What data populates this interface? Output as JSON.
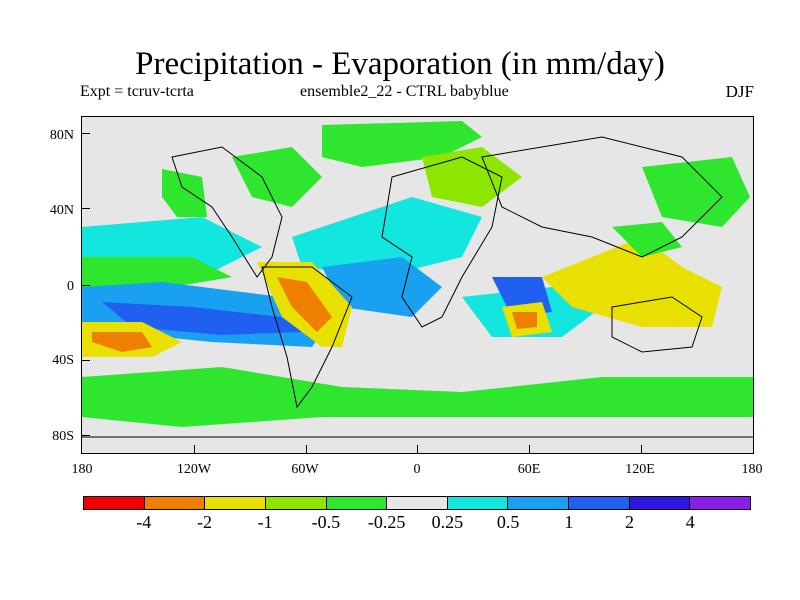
{
  "title": "Precipitation - Evaporation (in mm/day)",
  "subtitle_left": "Expt = tcruv-tcrta",
  "subtitle_mid": "ensemble2_22 - CTRL babyblue",
  "season": "DJF",
  "y_axis": {
    "labels": [
      "80N",
      "40N",
      "0",
      "40S",
      "80S"
    ]
  },
  "x_axis": {
    "labels": [
      "180",
      "120W",
      "60W",
      "0",
      "60E",
      "120E",
      "180"
    ]
  },
  "colorbar": {
    "colors": [
      "#f20000",
      "#ee7f00",
      "#e8e000",
      "#8ce600",
      "#2ee62e",
      "#e6e6e6",
      "#12e6de",
      "#1aa0f0",
      "#2060f0",
      "#3018e0",
      "#8a20e8"
    ],
    "labels": [
      "-4",
      "-2",
      "-1",
      "-0.5",
      "-0.25",
      "0.25",
      "0.5",
      "1",
      "2",
      "4"
    ]
  },
  "colors": {
    "background": "#e6e6e6",
    "coast": "#000000"
  }
}
